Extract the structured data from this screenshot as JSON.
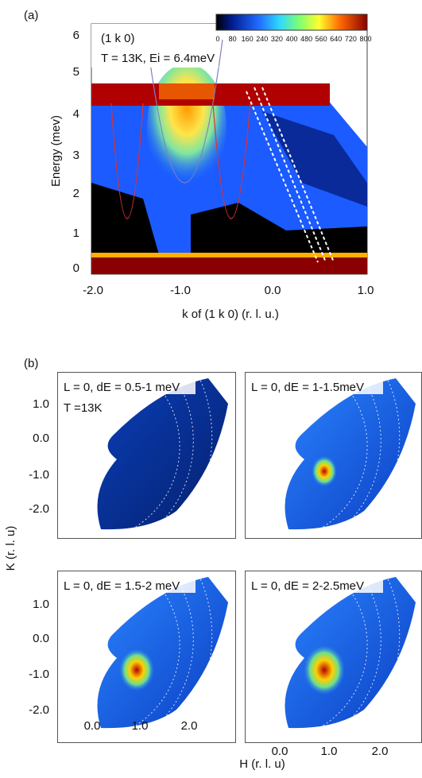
{
  "panel_a": {
    "label": "(a)",
    "annotation": "(1 k 0)",
    "conditions": "T = 13K, Ei = 6.4meV",
    "y_label": "Energy (mev)",
    "x_label": "k of (1 k 0) (r. l. u.)",
    "yticks": [
      "0",
      "1",
      "2",
      "3",
      "4",
      "5",
      "6"
    ],
    "xticks": [
      "-2.0",
      "-1.0",
      "0.0",
      "1.0"
    ],
    "colorbar_ticks": [
      "0",
      "80",
      "160",
      "240",
      "320",
      "400",
      "480",
      "560",
      "640",
      "720",
      "800"
    ]
  },
  "panel_b": {
    "label": "(b)",
    "y_label": "K (r. l. u)",
    "x_label": "H (r. l. u)",
    "yticks": [
      "1.0",
      "0.0",
      "-1.0",
      "-2.0"
    ],
    "xticks": [
      "0.0",
      "1.0",
      "2.0"
    ],
    "maps": [
      {
        "title": "L = 0, dE = 0.5-1 meV",
        "note": "T =13K"
      },
      {
        "title": "L = 0, dE = 1-1.5meV"
      },
      {
        "title": "L = 0, dE = 1.5-2 meV"
      },
      {
        "title": "L = 0, dE = 2-2.5meV"
      }
    ]
  }
}
